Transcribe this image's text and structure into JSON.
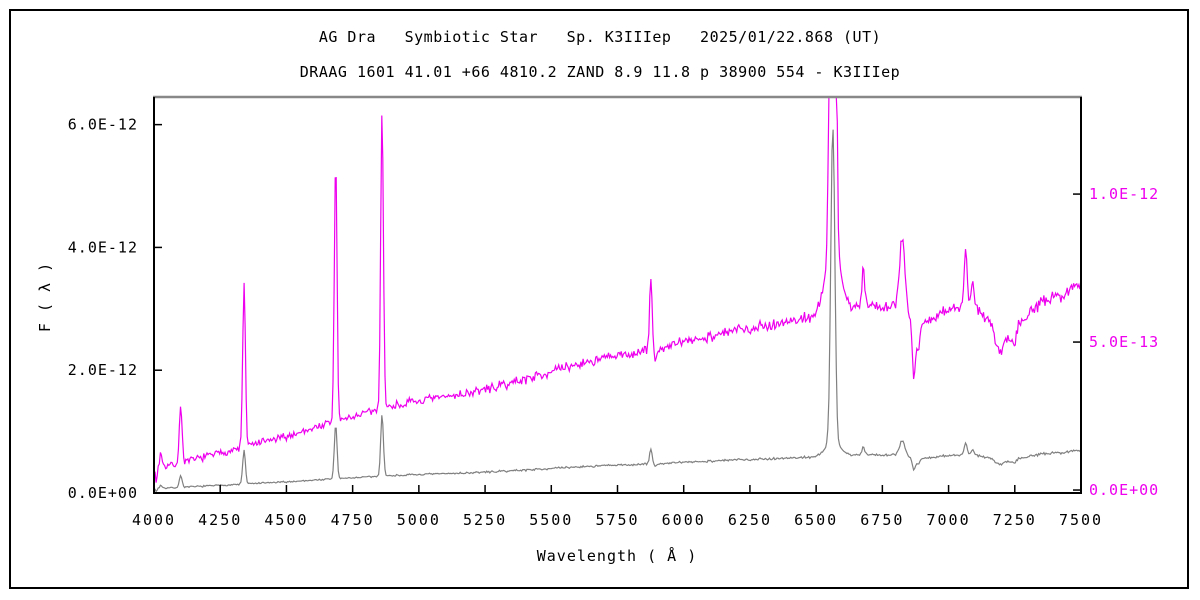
{
  "chart_data": {
    "type": "line",
    "title": "AG Dra   Symbiotic Star   Sp. K3IIIep   2025/01/22.868 (UT)",
    "subtitle": "DRAAG 1601 41.01 +66 4810.2 ZAND 8.9 11.8 p 38900 554 - K3IIIep",
    "xlabel": "Wavelength ( Å )",
    "ylabel": "F ( λ )",
    "grid": false,
    "legend": "none",
    "x_axis": {
      "min": 4000,
      "max": 7500,
      "tick_values": [
        4000,
        4250,
        4500,
        4750,
        5000,
        5250,
        5500,
        5750,
        6000,
        6250,
        6500,
        6750,
        7000,
        7250,
        7500
      ],
      "tick_labels": [
        "4000",
        "4250",
        "4500",
        "4750",
        "5000",
        "5250",
        "5500",
        "5750",
        "6000",
        "6250",
        "6500",
        "6750",
        "7000",
        "7250",
        "7500"
      ]
    },
    "flux_unit_factor": 1e-12,
    "left_axis": {
      "color": "#000000",
      "range": [
        0,
        6.45
      ],
      "tick_values": [
        0,
        2,
        4,
        6
      ],
      "tick_labels": [
        "0.0E+00",
        "2.0E-12",
        "4.0E-12",
        "6.0E-12"
      ]
    },
    "right_axis": {
      "color": "#EE00EE",
      "range": [
        -0.01,
        1.328
      ],
      "tick_values": [
        0,
        0.5,
        1.0
      ],
      "tick_labels": [
        "0.0E+00",
        "5.0E-13",
        "1.0E-12"
      ]
    },
    "spectrum": {
      "comment_units": "wavelength in Angstrom, flux in units of 1e-12 (matches axis labels)",
      "continuum": [
        [
          4000,
          0.075
        ],
        [
          4100,
          0.09
        ],
        [
          4200,
          0.115
        ],
        [
          4300,
          0.135
        ],
        [
          4400,
          0.16
        ],
        [
          4500,
          0.18
        ],
        [
          4600,
          0.21
        ],
        [
          4700,
          0.235
        ],
        [
          4800,
          0.26
        ],
        [
          4900,
          0.285
        ],
        [
          5000,
          0.3
        ],
        [
          5100,
          0.315
        ],
        [
          5200,
          0.33
        ],
        [
          5300,
          0.35
        ],
        [
          5400,
          0.375
        ],
        [
          5500,
          0.4
        ],
        [
          5600,
          0.425
        ],
        [
          5700,
          0.445
        ],
        [
          5800,
          0.46
        ],
        [
          5900,
          0.475
        ],
        [
          6000,
          0.5
        ],
        [
          6100,
          0.52
        ],
        [
          6200,
          0.54
        ],
        [
          6300,
          0.555
        ],
        [
          6400,
          0.57
        ],
        [
          6500,
          0.59
        ],
        [
          6600,
          0.615
        ],
        [
          6700,
          0.625
        ],
        [
          6800,
          0.62
        ],
        [
          6900,
          0.56
        ],
        [
          6950,
          0.58
        ],
        [
          7000,
          0.615
        ],
        [
          7100,
          0.62
        ],
        [
          7150,
          0.58
        ],
        [
          7200,
          0.52
        ],
        [
          7250,
          0.55
        ],
        [
          7300,
          0.6
        ],
        [
          7350,
          0.63
        ],
        [
          7400,
          0.65
        ],
        [
          7450,
          0.67
        ],
        [
          7500,
          0.7
        ]
      ],
      "emission_lines": [
        [
          4026,
          0.05,
          10
        ],
        [
          4101,
          0.2,
          12
        ],
        [
          4340,
          0.55,
          12
        ],
        [
          4686,
          0.89,
          12
        ],
        [
          4861,
          1.01,
          12
        ],
        [
          5876,
          0.25,
          12
        ],
        [
          6563,
          5.1,
          18
        ],
        [
          6563,
          0.25,
          60
        ],
        [
          6678,
          0.13,
          12
        ],
        [
          6825,
          0.24,
          25
        ],
        [
          7065,
          0.18,
          14
        ],
        [
          7090,
          0.08,
          12
        ]
      ],
      "absorption_dips": [
        [
          4008,
          0.05,
          8
        ],
        [
          5892,
          0.04,
          15
        ],
        [
          6869,
          0.2,
          14
        ],
        [
          6886,
          0.1,
          12
        ],
        [
          7190,
          0.06,
          35
        ],
        [
          7245,
          0.05,
          25
        ]
      ],
      "noise_amplitude": [
        0.014,
        0.028
      ],
      "seed": 7
    },
    "series": [
      {
        "name": "spectrum-right-scale",
        "axis": "right",
        "color": "#EE00EE",
        "width": 1.2
      },
      {
        "name": "spectrum-left-scale",
        "axis": "left",
        "color": "#808080",
        "width": 1.2
      }
    ],
    "frame_colors": {
      "top": "#888888",
      "left": "#000000",
      "bottom": "#000000",
      "right": "#000000"
    }
  }
}
